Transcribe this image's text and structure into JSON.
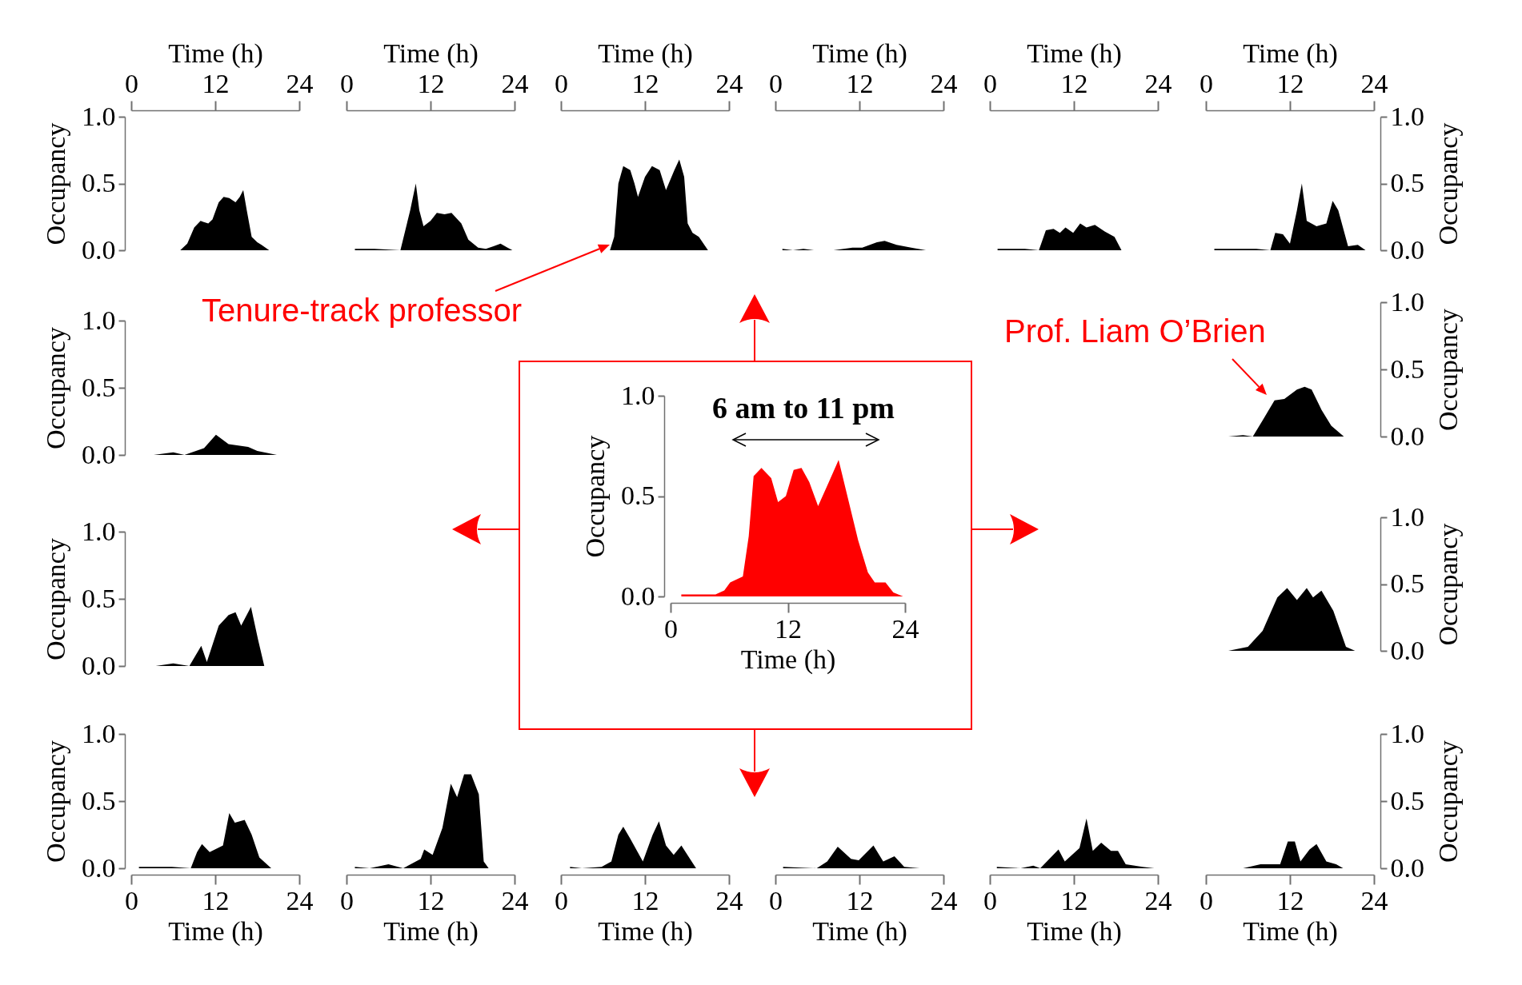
{
  "chart_data": [
    {
      "type": "area",
      "xlim": [
        0,
        24
      ],
      "xticks": [
        0,
        12,
        24
      ],
      "xlabel": "Time (h)",
      "ylim": [
        0,
        1
      ],
      "yticks": [
        {
          "value": 0,
          "label": "0.0"
        },
        {
          "value": 0.5,
          "label": "0.5"
        },
        {
          "value": 1,
          "label": "1.0"
        }
      ],
      "ylabel": "Occupancy",
      "series": [
        {
          "color": "#000000",
          "x": [
            5,
            7,
            8,
            9,
            9.9,
            11,
            11.6,
            12.5,
            13.2,
            14,
            14.9,
            15.5,
            16,
            16.5,
            17.2,
            18,
            18.6,
            19.7,
            21
          ],
          "values": [
            0,
            0,
            0.05,
            0.17,
            0.22,
            0.2,
            0.23,
            0.36,
            0.4,
            0.39,
            0.36,
            0.4,
            0.45,
            0.3,
            0.1,
            0.06,
            0.04,
            0,
            0
          ]
        }
      ]
    },
    {
      "type": "area",
      "xlim": [
        0,
        24
      ],
      "xticks": [
        0,
        12,
        24
      ],
      "xlabel": "Time (h)",
      "ylim": [
        0,
        1
      ],
      "tick_labels": "x",
      "series": [
        {
          "color": "#000000",
          "x": [
            1.2,
            4,
            7.7,
            9.1,
            9.9,
            10.4,
            11,
            12,
            12.9,
            14,
            15,
            16.4,
            17.4,
            18.8,
            19.9,
            21,
            22,
            23,
            23.7
          ],
          "values": [
            0.01,
            0.01,
            0,
            0.3,
            0.5,
            0.3,
            0.18,
            0.22,
            0.28,
            0.27,
            0.28,
            0.2,
            0.08,
            0.02,
            0.01,
            0.03,
            0.05,
            0.02,
            0
          ]
        }
      ]
    },
    {
      "type": "area",
      "xlim": [
        0,
        24
      ],
      "xticks": [
        0,
        12,
        24
      ],
      "xlabel": "Time (h)",
      "ylim": [
        0,
        1
      ],
      "tick_labels": "x",
      "annotations": [
        "Tenure-track professor"
      ],
      "series": [
        {
          "color": "#000000",
          "x": [
            7,
            7.6,
            8.2,
            8.9,
            9.9,
            10.5,
            11,
            12,
            13,
            14.1,
            15,
            16.2,
            16.9,
            17.6,
            18.1,
            18.8,
            19.7,
            21
          ],
          "values": [
            0,
            0.1,
            0.5,
            0.63,
            0.6,
            0.5,
            0.4,
            0.55,
            0.63,
            0.6,
            0.45,
            0.6,
            0.68,
            0.55,
            0.2,
            0.13,
            0.1,
            0
          ]
        }
      ]
    },
    {
      "type": "area",
      "xlim": [
        0,
        24
      ],
      "xticks": [
        0,
        12,
        24
      ],
      "xlabel": "Time (h)",
      "ylim": [
        0,
        1
      ],
      "tick_labels": "x",
      "series": [
        {
          "color": "#000000",
          "x": [
            1,
            2.5,
            4,
            5.5,
            8.3,
            11,
            12.4,
            14.5,
            15.6,
            17.3,
            19.4,
            21.5
          ],
          "values": [
            0.01,
            0,
            0.01,
            0,
            0,
            0.02,
            0.02,
            0.06,
            0.07,
            0.04,
            0.02,
            0
          ]
        }
      ]
    },
    {
      "type": "area",
      "xlim": [
        0,
        24
      ],
      "xticks": [
        0,
        12,
        24
      ],
      "xlabel": "Time (h)",
      "ylim": [
        0,
        1
      ],
      "tick_labels": "x",
      "series": [
        {
          "color": "#000000",
          "x": [
            1.1,
            5,
            7,
            8,
            9.1,
            10,
            10.8,
            11.9,
            12.9,
            13.8,
            15,
            16.4,
            17.8,
            18.8,
            24
          ],
          "values": [
            0.01,
            0.01,
            0,
            0.15,
            0.16,
            0.13,
            0.17,
            0.13,
            0.2,
            0.17,
            0.19,
            0.14,
            0.1,
            0,
            0
          ]
        }
      ]
    },
    {
      "type": "area",
      "xlim": [
        0,
        24
      ],
      "xticks": [
        0,
        12,
        24
      ],
      "xlabel": "Time (h)",
      "y2lim": [
        0,
        1
      ],
      "y2ticks": [
        {
          "value": 0,
          "label": "0.0"
        },
        {
          "value": 0.5,
          "label": "0.5"
        },
        {
          "value": 1,
          "label": "1.0"
        }
      ],
      "y2label": "Occupancy",
      "series": [
        {
          "color": "#000000",
          "axis": "y2",
          "x": [
            1.2,
            7.2,
            9.2,
            9.9,
            11,
            12,
            13,
            13.7,
            14.4,
            15.8,
            17.2,
            18.1,
            18.9,
            20.3,
            21.7,
            22.8
          ],
          "values": [
            0.01,
            0.01,
            0,
            0.13,
            0.12,
            0.05,
            0.3,
            0.5,
            0.22,
            0.18,
            0.2,
            0.37,
            0.3,
            0.03,
            0.04,
            0
          ]
        }
      ]
    },
    {
      "type": "area",
      "xlim": [
        0,
        24
      ],
      "ylim": [
        0,
        1
      ],
      "yticks": [
        {
          "value": 0,
          "label": "0.0"
        },
        {
          "value": 0.5,
          "label": "0.5"
        },
        {
          "value": 1,
          "label": "1.0"
        }
      ],
      "ylabel": "Occupancy",
      "tick_labels": "y",
      "series": [
        {
          "color": "#000000",
          "x": [
            3.2,
            6,
            7.6,
            10.4,
            12.1,
            13.9,
            16.7,
            18,
            20.8
          ],
          "values": [
            0,
            0.02,
            0,
            0.05,
            0.15,
            0.08,
            0.06,
            0.03,
            0
          ]
        }
      ]
    },
    {
      "type": "area",
      "xlim": [
        0,
        24
      ],
      "xticks": [
        0,
        12,
        24
      ],
      "xlabel": "Time (h)",
      "ylim": [
        0,
        1
      ],
      "yticks": [
        {
          "value": 0,
          "label": "0.0"
        },
        {
          "value": 0.5,
          "label": "0.5"
        },
        {
          "value": 1,
          "label": "1.0"
        }
      ],
      "ylabel": "Occupancy",
      "annotations": [
        "6 am to 11 pm"
      ],
      "series": [
        {
          "color": "#ff0000",
          "x": [
            1.1,
            4.6,
            5.5,
            6.1,
            7.4,
            8,
            8.5,
            9.3,
            10.3,
            11,
            11.8,
            12.6,
            13.4,
            14.2,
            15.1,
            16.2,
            17.2,
            18.1,
            19.2,
            20.2,
            20.9,
            22,
            22.8,
            23.8
          ],
          "values": [
            0.01,
            0.01,
            0.03,
            0.07,
            0.1,
            0.3,
            0.6,
            0.64,
            0.59,
            0.47,
            0.5,
            0.63,
            0.64,
            0.57,
            0.45,
            0.57,
            0.68,
            0.5,
            0.28,
            0.12,
            0.07,
            0.07,
            0.02,
            0
          ]
        }
      ]
    },
    {
      "type": "area",
      "xlim": [
        0,
        24
      ],
      "y2lim": [
        0,
        1
      ],
      "y2ticks": [
        {
          "value": 0,
          "label": "0.0"
        },
        {
          "value": 0.5,
          "label": "0.5"
        },
        {
          "value": 1,
          "label": "1.0"
        }
      ],
      "y2label": "Occupancy",
      "tick_labels": "y",
      "annotations": [
        "Prof. Liam O’Brien"
      ],
      "series": [
        {
          "color": "#000000",
          "axis": "y2",
          "x": [
            3.2,
            5.3,
            6.7,
            8.1,
            9.8,
            11.2,
            13,
            14.1,
            15.1,
            16.5,
            17.9,
            19.7
          ],
          "values": [
            0,
            0.01,
            0,
            0.12,
            0.27,
            0.28,
            0.35,
            0.37,
            0.35,
            0.2,
            0.08,
            0
          ]
        }
      ]
    },
    {
      "type": "area",
      "xlim": [
        0,
        24
      ],
      "ylim": [
        0,
        1
      ],
      "yticks": [
        {
          "value": 0,
          "label": "0.0"
        },
        {
          "value": 0.5,
          "label": "0.5"
        },
        {
          "value": 1,
          "label": "1.0"
        }
      ],
      "ylabel": "Occupancy",
      "tick_labels": "y",
      "series": [
        {
          "color": "#000000",
          "x": [
            3.5,
            6,
            8.3,
            10,
            10.8,
            12.5,
            13.9,
            14.9,
            15.7,
            17.1,
            18.1,
            19
          ],
          "values": [
            0,
            0.02,
            0,
            0.15,
            0.03,
            0.3,
            0.38,
            0.4,
            0.3,
            0.44,
            0.2,
            0
          ]
        }
      ]
    },
    {
      "type": "area",
      "xlim": [
        0,
        24
      ],
      "y2lim": [
        0,
        1
      ],
      "y2ticks": [
        {
          "value": 0,
          "label": "0.0"
        },
        {
          "value": 0.5,
          "label": "0.5"
        },
        {
          "value": 1,
          "label": "1.0"
        }
      ],
      "y2label": "Occupancy",
      "tick_labels": "y",
      "series": [
        {
          "color": "#000000",
          "axis": "y2",
          "x": [
            3.2,
            6,
            8.1,
            10.2,
            11.6,
            13,
            14.4,
            15.3,
            16.5,
            18.2,
            20,
            21.3
          ],
          "values": [
            0,
            0.03,
            0.15,
            0.4,
            0.47,
            0.38,
            0.47,
            0.4,
            0.45,
            0.3,
            0.03,
            0
          ]
        }
      ]
    },
    {
      "type": "area",
      "xlim": [
        0,
        24
      ],
      "xticks": [
        0,
        12,
        24
      ],
      "xlabel": "Time (h)",
      "ylim": [
        0,
        1
      ],
      "yticks": [
        {
          "value": 0,
          "label": "0.0"
        },
        {
          "value": 0.5,
          "label": "0.5"
        },
        {
          "value": 1,
          "label": "1.0"
        }
      ],
      "ylabel": "Occupancy",
      "series": [
        {
          "color": "#000000",
          "x": [
            1.1,
            5.8,
            8.5,
            9.4,
            10.1,
            11.2,
            13.1,
            14,
            14.8,
            16.2,
            17.2,
            18.3,
            20,
            24
          ],
          "values": [
            0.01,
            0.01,
            0,
            0.12,
            0.18,
            0.12,
            0.17,
            0.41,
            0.34,
            0.36,
            0.25,
            0.08,
            0,
            0
          ]
        }
      ]
    },
    {
      "type": "area",
      "xlim": [
        0,
        24
      ],
      "xticks": [
        0,
        12,
        24
      ],
      "xlabel": "Time (h)",
      "ylim": [
        0,
        1
      ],
      "tick_labels": "x",
      "series": [
        {
          "color": "#000000",
          "x": [
            1.2,
            3.3,
            6,
            8.1,
            10.6,
            11.1,
            12.3,
            13.7,
            14.9,
            15.8,
            16.8,
            17.8,
            18.9,
            19.6,
            20.3
          ],
          "values": [
            0.01,
            0,
            0.03,
            0,
            0.07,
            0.14,
            0.1,
            0.3,
            0.63,
            0.53,
            0.7,
            0.7,
            0.55,
            0.05,
            0
          ]
        }
      ]
    },
    {
      "type": "area",
      "xlim": [
        0,
        24
      ],
      "xticks": [
        0,
        12,
        24
      ],
      "xlabel": "Time (h)",
      "ylim": [
        0,
        1
      ],
      "tick_labels": "x",
      "series": [
        {
          "color": "#000000",
          "x": [
            1.3,
            3,
            5.8,
            7.2,
            8.2,
            8.9,
            9.9,
            11.7,
            13.1,
            14,
            15,
            16.1,
            17.2,
            18.3,
            19.3
          ],
          "values": [
            0.01,
            0,
            0.01,
            0.05,
            0.25,
            0.31,
            0.22,
            0.05,
            0.25,
            0.35,
            0.17,
            0.1,
            0.17,
            0.08,
            0
          ]
        }
      ]
    },
    {
      "type": "area",
      "xlim": [
        0,
        24
      ],
      "xticks": [
        0,
        12,
        24
      ],
      "xlabel": "Time (h)",
      "ylim": [
        0,
        1
      ],
      "tick_labels": "x",
      "series": [
        {
          "color": "#000000",
          "x": [
            1.1,
            5.9,
            7.4,
            8.9,
            10.8,
            11.9,
            14,
            15.4,
            17,
            18.4,
            20.6
          ],
          "values": [
            0.01,
            0,
            0.05,
            0.16,
            0.07,
            0.06,
            0.17,
            0.05,
            0.09,
            0.01,
            0
          ]
        }
      ]
    },
    {
      "type": "area",
      "xlim": [
        0,
        24
      ],
      "xticks": [
        0,
        12,
        24
      ],
      "xlabel": "Time (h)",
      "ylim": [
        0,
        1
      ],
      "tick_labels": "x",
      "series": [
        {
          "color": "#000000",
          "x": [
            1,
            4.4,
            6.2,
            7.2,
            9.8,
            10.7,
            12.8,
            13.8,
            14.7,
            15.9,
            17.3,
            18.3,
            19.4,
            21.8,
            23.5
          ],
          "values": [
            0.01,
            0,
            0.02,
            0,
            0.14,
            0.05,
            0.15,
            0.37,
            0.13,
            0.19,
            0.13,
            0.13,
            0.03,
            0.01,
            0
          ]
        }
      ]
    },
    {
      "type": "area",
      "xlim": [
        0,
        24
      ],
      "xticks": [
        0,
        12,
        24
      ],
      "xlabel": "Time (h)",
      "y2lim": [
        0,
        1
      ],
      "y2ticks": [
        {
          "value": 0,
          "label": "0.0"
        },
        {
          "value": 0.5,
          "label": "0.5"
        },
        {
          "value": 1,
          "label": "1.0"
        }
      ],
      "y2label": "Occupancy",
      "series": [
        {
          "color": "#000000",
          "axis": "y2",
          "x": [
            5.3,
            7.8,
            10.6,
            11.7,
            12.7,
            13.5,
            14.8,
            15.8,
            17.2,
            18.6,
            19.6
          ],
          "values": [
            0,
            0.03,
            0.03,
            0.2,
            0.2,
            0.05,
            0.14,
            0.18,
            0.05,
            0.03,
            0
          ]
        }
      ]
    }
  ]
}
